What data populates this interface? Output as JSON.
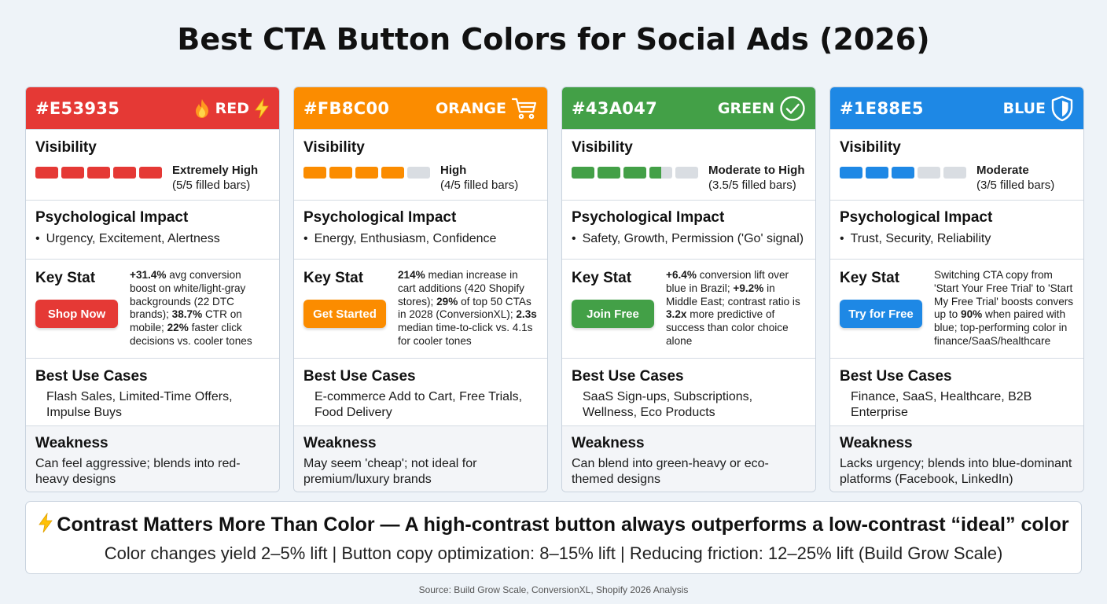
{
  "title": "Best CTA Button Colors for Social Ads (2026)",
  "cards": [
    {
      "hex": "#E53935",
      "name": "RED",
      "color": "#E53935",
      "icon": "fire-lightning-icon",
      "visibility_label": "Visibility",
      "visibility_level": "Extremely High",
      "visibility_note": "(5/5 filled bars)",
      "visibility_score": 5,
      "psych_label": "Psychological Impact",
      "psych_text": "Urgency, Excitement, Alertness",
      "key_label": "Key Stat",
      "cta": "Shop Now",
      "key_parts": [
        {
          "b": true,
          "t": "+31.4%"
        },
        {
          "b": false,
          "t": " avg conversion boost on white/light-gray backgrounds (22 DTC brands); "
        },
        {
          "b": true,
          "t": "38.7%"
        },
        {
          "b": false,
          "t": " CTR on mobile; "
        },
        {
          "b": true,
          "t": "22%"
        },
        {
          "b": false,
          "t": " faster click decisions vs. cooler tones"
        }
      ],
      "use_label": "Best Use Cases",
      "use_text": "Flash Sales, Limited-Time Offers, Impulse Buys",
      "weak_label": "Weakness",
      "weak_text": "Can feel aggressive; blends into red-heavy designs"
    },
    {
      "hex": "#FB8C00",
      "name": "ORANGE",
      "color": "#FB8C00",
      "icon": "shopping-cart-icon",
      "visibility_label": "Visibility",
      "visibility_level": "High",
      "visibility_note": "(4/5 filled bars)",
      "visibility_score": 4,
      "psych_label": "Psychological Impact",
      "psych_text": "Energy, Enthusiasm, Confidence",
      "key_label": "Key Stat",
      "cta": "Get Started",
      "key_parts": [
        {
          "b": true,
          "t": "214%"
        },
        {
          "b": false,
          "t": " median increase in cart additions (420 Shopify stores); "
        },
        {
          "b": true,
          "t": "29%"
        },
        {
          "b": false,
          "t": " of top 50 CTAs in 2028 (ConversionXL); "
        },
        {
          "b": true,
          "t": "2.3s"
        },
        {
          "b": false,
          "t": " median time-to-click vs. 4.1s for cooler tones"
        }
      ],
      "use_label": "Best Use Cases",
      "use_text": "E-commerce Add to Cart, Free Trials, Food Delivery",
      "weak_label": "Weakness",
      "weak_text": "May seem 'cheap'; not ideal for premium/luxury brands"
    },
    {
      "hex": "#43A047",
      "name": "GREEN",
      "color": "#43A047",
      "icon": "check-circle-icon",
      "visibility_label": "Visibility",
      "visibility_level": "Moderate to High",
      "visibility_note": "(3.5/5 filled bars)",
      "visibility_score": 3.5,
      "psych_label": "Psychological Impact",
      "psych_text": "Safety, Growth, Permission ('Go' signal)",
      "key_label": "Key Stat",
      "cta": "Join Free",
      "key_parts": [
        {
          "b": true,
          "t": "+6.4%"
        },
        {
          "b": false,
          "t": " conversion lift over blue in Brazil; "
        },
        {
          "b": true,
          "t": "+9.2%"
        },
        {
          "b": false,
          "t": " in Middle East; contrast ratio is "
        },
        {
          "b": true,
          "t": "3.2x"
        },
        {
          "b": false,
          "t": " more predictive of success than color choice alone"
        }
      ],
      "use_label": "Best Use Cases",
      "use_text": "SaaS Sign-ups, Subscriptions, Wellness, Eco Products",
      "weak_label": "Weakness",
      "weak_text": "Can blend into green-heavy or eco-themed designs"
    },
    {
      "hex": "#1E88E5",
      "name": "BLUE",
      "color": "#1E88E5",
      "icon": "shield-icon",
      "visibility_label": "Visibility",
      "visibility_level": "Moderate",
      "visibility_note": "(3/5 filled bars)",
      "visibility_score": 3,
      "psych_label": "Psychological Impact",
      "psych_text": "Trust, Security, Reliability",
      "key_label": "Key Stat",
      "cta": "Try for Free",
      "key_parts": [
        {
          "b": false,
          "t": "Switching CTA copy from 'Start Your Free Trial' to 'Start My Free Trial' boosts convers up to "
        },
        {
          "b": true,
          "t": "90%"
        },
        {
          "b": false,
          "t": " when paired with blue; top-performing color in finance/SaaS/healthcare"
        }
      ],
      "use_label": "Best Use Cases",
      "use_text": "Finance, SaaS, Healthcare, B2B Enterprise",
      "weak_label": "Weakness",
      "weak_text": "Lacks urgency; blends into blue-dominant platforms (Facebook, LinkedIn)"
    }
  ],
  "banner": {
    "icon": "lightning-icon",
    "headline": "Contrast Matters More Than Color — A high-contrast button always outperforms a low-contrast “ideal” color",
    "subline": "Color changes yield 2–5% lift | Button copy optimization: 8–15% lift | Reducing friction: 12–25% lift (Build Grow Scale)"
  },
  "source": "Source: Build Grow Scale, ConversionXL, Shopify 2026 Analysis"
}
